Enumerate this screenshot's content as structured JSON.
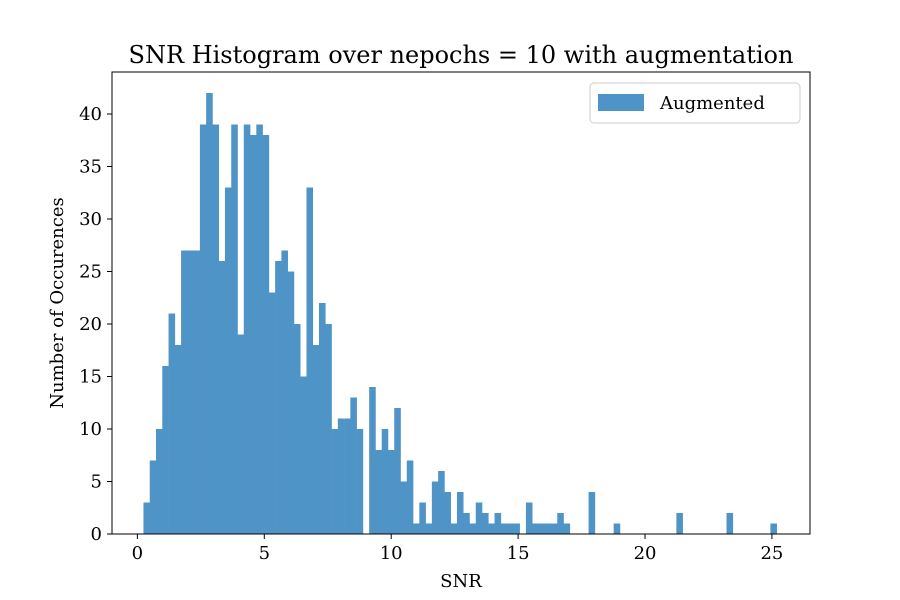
{
  "chart_data": {
    "type": "bar",
    "title": "SNR Histogram over nepochs = 10 with augmentation",
    "xlabel": "SNR",
    "ylabel": "Number of Occurences",
    "xlim": [
      -1.0,
      26.5
    ],
    "ylim": [
      0,
      44
    ],
    "xticks": [
      0,
      5,
      10,
      15,
      20,
      25
    ],
    "yticks": [
      0,
      5,
      10,
      15,
      20,
      25,
      30,
      35,
      40
    ],
    "grid": false,
    "legend_position": "top-right",
    "color": "#4f94c6",
    "series": [
      {
        "name": "Augmented",
        "bin_width": 0.247,
        "bin_starts": [
          0.24,
          0.487,
          0.734,
          0.981,
          1.228,
          1.475,
          1.722,
          1.969,
          2.216,
          2.463,
          2.71,
          2.957,
          3.204,
          3.451,
          3.698,
          3.945,
          4.192,
          4.439,
          4.686,
          4.933,
          5.18,
          5.427,
          5.674,
          5.921,
          6.168,
          6.415,
          6.662,
          6.909,
          7.156,
          7.403,
          7.65,
          7.897,
          8.144,
          8.391,
          8.638,
          8.885,
          9.132,
          9.379,
          9.626,
          9.873,
          10.12,
          10.367,
          10.614,
          10.861,
          11.108,
          11.355,
          11.602,
          11.849,
          12.096,
          12.343,
          12.59,
          12.837,
          13.084,
          13.331,
          13.578,
          13.825,
          14.072,
          14.319,
          14.566,
          14.813,
          15.06,
          15.307,
          15.554,
          15.801,
          16.048,
          16.295,
          16.542,
          16.789,
          17.036,
          17.283,
          17.53,
          17.777,
          18.024,
          18.271,
          18.518,
          18.765,
          19.012,
          19.259,
          19.506,
          19.753,
          20.0,
          20.247,
          20.494,
          20.741,
          20.988,
          21.235,
          21.482,
          21.729,
          21.976,
          22.223,
          22.47,
          22.717,
          22.964,
          23.211,
          23.458,
          23.705,
          23.952,
          24.199,
          24.446,
          24.693,
          24.94
        ],
        "counts": [
          3,
          7,
          10,
          16,
          21,
          18,
          27,
          27,
          27,
          39,
          42,
          39,
          26,
          33,
          39,
          19,
          39,
          38,
          39,
          38,
          23,
          26,
          27,
          25,
          20,
          15,
          33,
          18,
          22,
          20,
          10,
          11,
          11,
          13,
          10,
          0,
          14,
          8,
          10,
          8,
          12,
          5,
          7,
          1,
          3,
          1,
          5,
          6,
          4,
          1,
          4,
          2,
          1,
          3,
          2,
          1,
          2,
          1,
          1,
          1,
          0,
          3,
          1,
          1,
          1,
          1,
          2,
          1,
          0,
          0,
          0,
          4,
          0,
          0,
          0,
          1,
          0,
          0,
          0,
          0,
          0,
          0,
          0,
          0,
          0,
          2,
          0,
          0,
          0,
          0,
          0,
          0,
          0,
          2,
          0,
          0,
          0,
          0,
          0,
          0,
          1
        ]
      }
    ]
  }
}
